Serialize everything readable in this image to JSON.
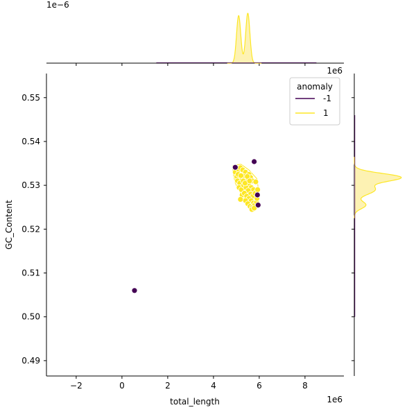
{
  "chart_data": {
    "type": "scatter",
    "title": "",
    "xlabel": "total_length",
    "ylabel": "GC_Content",
    "x_offset_label": "1e6",
    "y_axis_top_label": "1e6",
    "top_marginal_offset_label": "1e−6",
    "xlim": [
      -3.3,
      9.7
    ],
    "ylim": [
      0.4865,
      0.5555
    ],
    "x_ticks": [
      -2,
      0,
      2,
      4,
      6,
      8
    ],
    "x_tick_labels": [
      "−2",
      "0",
      "2",
      "4",
      "6",
      "8"
    ],
    "y_ticks": [
      0.49,
      0.5,
      0.51,
      0.52,
      0.53,
      0.54,
      0.55
    ],
    "y_tick_labels": [
      "0.49",
      "0.50",
      "0.51",
      "0.52",
      "0.53",
      "0.54",
      "0.55"
    ],
    "grid": false,
    "legend": {
      "title": "anomaly",
      "placement": "top-right",
      "entries": [
        {
          "label": "-1",
          "color": "#440154"
        },
        {
          "label": "1",
          "color": "#fde725"
        }
      ]
    },
    "colors": {
      "anomaly_neg": "#440154",
      "anomaly_pos": "#fde725",
      "kde_fill": "#fdf2b3"
    },
    "series": [
      {
        "name": "-1",
        "color": "#440154",
        "points": [
          [
            0.55,
            0.506
          ],
          [
            4.95,
            0.5341
          ],
          [
            5.78,
            0.5354
          ],
          [
            5.92,
            0.5278
          ],
          [
            5.95,
            0.5255
          ]
        ]
      },
      {
        "name": "1",
        "color": "#fde725",
        "points": [
          [
            4.95,
            0.533
          ],
          [
            5.02,
            0.532
          ],
          [
            5.1,
            0.5336
          ],
          [
            5.18,
            0.534
          ],
          [
            5.28,
            0.5335
          ],
          [
            5.4,
            0.533
          ],
          [
            5.55,
            0.5325
          ],
          [
            5.62,
            0.5318
          ],
          [
            5.7,
            0.531
          ],
          [
            5.85,
            0.5308
          ],
          [
            5.05,
            0.531
          ],
          [
            5.15,
            0.5305
          ],
          [
            5.25,
            0.5315
          ],
          [
            5.35,
            0.532
          ],
          [
            5.45,
            0.5312
          ],
          [
            5.55,
            0.53
          ],
          [
            5.65,
            0.5295
          ],
          [
            5.75,
            0.529
          ],
          [
            5.12,
            0.5295
          ],
          [
            5.22,
            0.529
          ],
          [
            5.32,
            0.53
          ],
          [
            5.42,
            0.5295
          ],
          [
            5.52,
            0.5288
          ],
          [
            5.62,
            0.528
          ],
          [
            5.72,
            0.5275
          ],
          [
            5.82,
            0.5282
          ],
          [
            5.25,
            0.5278
          ],
          [
            5.35,
            0.5282
          ],
          [
            5.45,
            0.5275
          ],
          [
            5.55,
            0.527
          ],
          [
            5.65,
            0.5265
          ],
          [
            5.75,
            0.526
          ],
          [
            5.4,
            0.5265
          ],
          [
            5.5,
            0.5258
          ],
          [
            5.6,
            0.5252
          ],
          [
            5.7,
            0.525
          ],
          [
            5.8,
            0.5255
          ],
          [
            5.88,
            0.5262
          ],
          [
            5.68,
            0.5245
          ],
          [
            5.78,
            0.5248
          ],
          [
            5.08,
            0.5325
          ],
          [
            5.2,
            0.5322
          ],
          [
            5.3,
            0.531
          ],
          [
            5.38,
            0.5305
          ],
          [
            5.48,
            0.532
          ],
          [
            5.58,
            0.531
          ],
          [
            5.9,
            0.527
          ],
          [
            5.93,
            0.529
          ],
          [
            5.18,
            0.5268
          ]
        ]
      }
    ],
    "marginals": {
      "x_density": {
        "type": "kde",
        "series": [
          {
            "name": "1",
            "color": "#fde725",
            "peaks": [
              [
                5.1,
                1.0
              ],
              [
                5.5,
                1.05
              ]
            ],
            "range": [
              4.8,
              5.95
            ]
          },
          {
            "name": "-1",
            "color": "#440154",
            "note_hidden": true
          }
        ]
      },
      "y_density": {
        "type": "kde",
        "series": [
          {
            "name": "1",
            "color": "#fde725",
            "peak_at": 0.5318,
            "range": [
              0.5238,
              0.5352
            ]
          }
        ]
      }
    }
  }
}
